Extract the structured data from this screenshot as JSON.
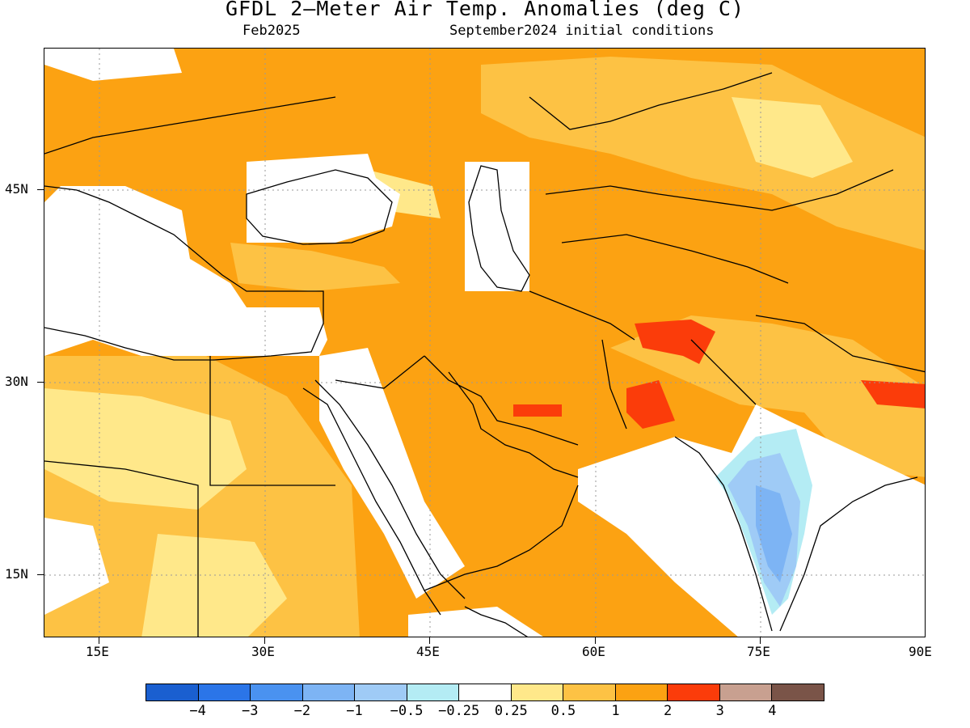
{
  "title": "GFDL 2–Meter Air Temp. Anomalies (deg C)",
  "subtitle_left": "Feb2025",
  "subtitle_right": "September2024 initial conditions",
  "map": {
    "lon_range": [
      10,
      90
    ],
    "lat_range": [
      10,
      55
    ],
    "lon_ticks": [
      "15E",
      "30E",
      "45E",
      "60E",
      "75E",
      "90E"
    ],
    "lat_ticks": [
      "45N",
      "30N",
      "15N"
    ],
    "gridlines": "dotted"
  },
  "colorbar": {
    "colors": [
      "#1a5fd0",
      "#2b75e8",
      "#4a92f0",
      "#7db4f4",
      "#9fcbf6",
      "#b4ecf4",
      "#ffffff",
      "#ffe88a",
      "#fdc244",
      "#fca212",
      "#fb3c0a",
      "#c8a090",
      "#7a5448"
    ],
    "labels": [
      "−4",
      "−3",
      "−2",
      "−1",
      "−0.5",
      "−0.25",
      "0.25",
      "0.5",
      "1",
      "2",
      "3",
      "4"
    ]
  }
}
